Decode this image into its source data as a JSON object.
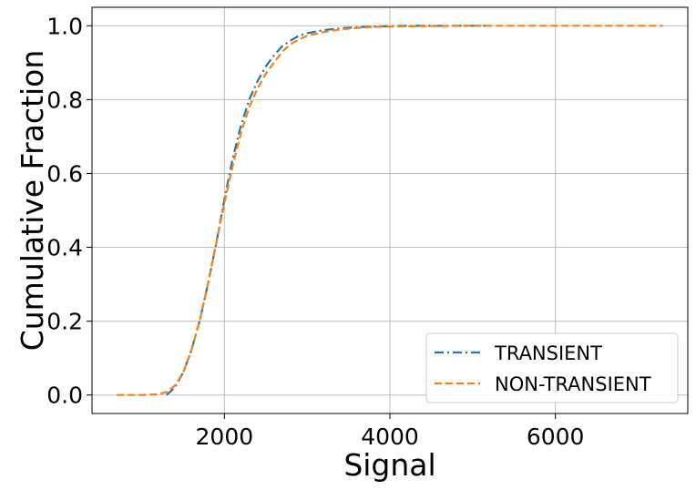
{
  "chart_data": {
    "type": "line",
    "title": "",
    "xlabel": "Signal",
    "ylabel": "Cumulative Fraction",
    "xlim": [
      400,
      7600
    ],
    "ylim": [
      -0.05,
      1.05
    ],
    "xticks": [
      2000,
      4000,
      6000
    ],
    "xtick_labels": [
      "2000",
      "4000",
      "6000"
    ],
    "yticks": [
      0.0,
      0.2,
      0.4,
      0.6,
      0.8,
      1.0
    ],
    "ytick_labels": [
      "0.0",
      "0.2",
      "0.4",
      "0.6",
      "0.8",
      "1.0"
    ],
    "grid": true,
    "legend_position": "lower-right",
    "series": [
      {
        "name": "TRANSIENT",
        "color": "#1f77b4",
        "linestyle": "dashdot",
        "x": [
          1300,
          1400,
          1500,
          1600,
          1700,
          1800,
          1900,
          2000,
          2100,
          2200,
          2300,
          2400,
          2500,
          2600,
          2700,
          2800,
          2900,
          3000,
          3200,
          3400,
          3600,
          3800,
          4000,
          4200,
          4500,
          5200
        ],
        "y": [
          0.0,
          0.02,
          0.06,
          0.12,
          0.2,
          0.3,
          0.41,
          0.53,
          0.64,
          0.73,
          0.8,
          0.85,
          0.89,
          0.92,
          0.945,
          0.96,
          0.973,
          0.98,
          0.988,
          0.993,
          0.996,
          0.998,
          0.999,
          1.0,
          1.0,
          1.0
        ]
      },
      {
        "name": "NON-TRANSIENT",
        "color": "#ff7f0e",
        "linestyle": "dashed",
        "x": [
          700,
          1000,
          1200,
          1300,
          1400,
          1500,
          1600,
          1700,
          1800,
          1900,
          2000,
          2100,
          2200,
          2300,
          2400,
          2500,
          2600,
          2700,
          2800,
          2900,
          3000,
          3200,
          3400,
          3600,
          3800,
          4000,
          4500,
          5000,
          6000,
          7300
        ],
        "y": [
          0.0,
          0.0,
          0.002,
          0.008,
          0.025,
          0.06,
          0.12,
          0.2,
          0.3,
          0.41,
          0.52,
          0.62,
          0.71,
          0.78,
          0.83,
          0.87,
          0.9,
          0.93,
          0.95,
          0.963,
          0.973,
          0.983,
          0.99,
          0.994,
          0.997,
          0.998,
          0.999,
          1.0,
          1.0,
          1.0
        ]
      }
    ]
  }
}
